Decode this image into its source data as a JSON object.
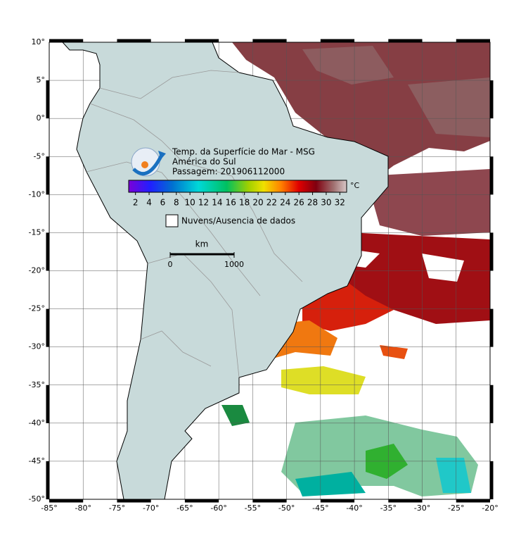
{
  "map": {
    "title": "Temp. da Superfície do Mar - MSG",
    "region": "América do Sul",
    "pass": "Passagem: 201906112000",
    "colorbar": {
      "ticks": [
        2,
        4,
        6,
        8,
        10,
        12,
        14,
        16,
        18,
        20,
        22,
        24,
        26,
        28,
        30,
        32
      ],
      "unit": "°C"
    },
    "legend": "Nuvens/Ausencia de dados",
    "scale": {
      "unit": "km",
      "ticks": [
        0,
        1000
      ]
    },
    "xlim": [
      -85,
      -20
    ],
    "ylim": [
      -50,
      10
    ],
    "xticks": [
      {
        "value": -85,
        "label": "-85°"
      },
      {
        "value": -80,
        "label": "-80°"
      },
      {
        "value": -75,
        "label": "-75°"
      },
      {
        "value": -70,
        "label": "-70°"
      },
      {
        "value": -65,
        "label": "-65°"
      },
      {
        "value": -60,
        "label": "-60°"
      },
      {
        "value": -55,
        "label": "-55°"
      },
      {
        "value": -50,
        "label": "-50°"
      },
      {
        "value": -45,
        "label": "-45°"
      },
      {
        "value": -40,
        "label": "-40°"
      },
      {
        "value": -35,
        "label": "-35°"
      },
      {
        "value": -30,
        "label": "-30°"
      },
      {
        "value": -25,
        "label": "-25°"
      },
      {
        "value": -20,
        "label": "-20°"
      }
    ],
    "yticks": [
      {
        "value": 10,
        "label": "10°"
      },
      {
        "value": 5,
        "label": "5°"
      },
      {
        "value": 0,
        "label": "0°"
      },
      {
        "value": -5,
        "label": "-5°"
      },
      {
        "value": -10,
        "label": "-10°"
      },
      {
        "value": -15,
        "label": "-15°"
      },
      {
        "value": -20,
        "label": "-20°"
      },
      {
        "value": -25,
        "label": "-25°"
      },
      {
        "value": -30,
        "label": "-30°"
      },
      {
        "value": -35,
        "label": "-35°"
      },
      {
        "value": -40,
        "label": "-40°"
      },
      {
        "value": -45,
        "label": "-45°"
      },
      {
        "value": -50,
        "label": "-50°"
      }
    ]
  }
}
